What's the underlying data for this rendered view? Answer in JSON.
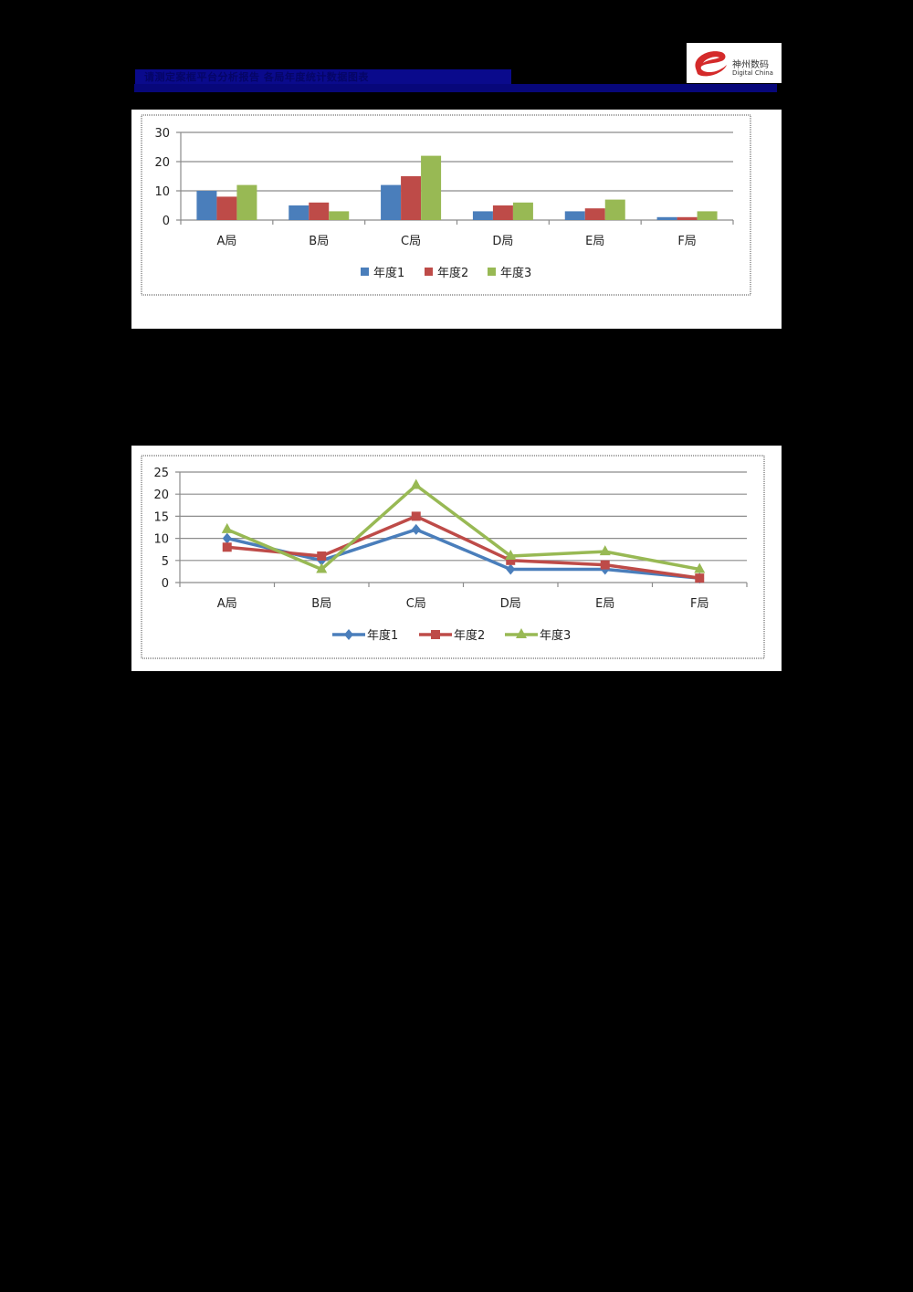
{
  "header": {
    "title": "请测定案框平台分析报告 各局年度统计数据图表",
    "title_bar_color": "#0a0a8c",
    "rule_color": "#07077a"
  },
  "logo": {
    "name_cn": "神州数码",
    "name_en": "Digital China",
    "icon": "digital-china-swirl-logo-icon"
  },
  "colors": {
    "series1": "#4a7ebb",
    "series2": "#be4b48",
    "series3": "#98b954",
    "gridline": "#8c8c8c",
    "panel_border": "#a6a6a6"
  },
  "chart_data": [
    {
      "type": "bar",
      "title": "",
      "xlabel": "",
      "ylabel": "",
      "categories": [
        "A局",
        "B局",
        "C局",
        "D局",
        "E局",
        "F局"
      ],
      "series": [
        {
          "name": "年度1",
          "values": [
            10,
            5,
            12,
            3,
            3,
            1
          ]
        },
        {
          "name": "年度2",
          "values": [
            8,
            6,
            15,
            5,
            4,
            1
          ]
        },
        {
          "name": "年度3",
          "values": [
            12,
            3,
            22,
            6,
            7,
            3
          ]
        }
      ],
      "ylim": [
        0,
        30
      ],
      "yticks": [
        "0",
        "10",
        "20",
        "30"
      ],
      "grid": true,
      "legend_position": "bottom"
    },
    {
      "type": "line",
      "title": "",
      "xlabel": "",
      "ylabel": "",
      "categories": [
        "A局",
        "B局",
        "C局",
        "D局",
        "E局",
        "F局"
      ],
      "series": [
        {
          "name": "年度1",
          "marker": "diamond",
          "values": [
            10,
            5,
            12,
            3,
            3,
            1
          ]
        },
        {
          "name": "年度2",
          "marker": "square",
          "values": [
            8,
            6,
            15,
            5,
            4,
            1
          ]
        },
        {
          "name": "年度3",
          "marker": "triangle",
          "values": [
            12,
            3,
            22,
            6,
            7,
            3
          ]
        }
      ],
      "ylim": [
        0,
        25
      ],
      "yticks": [
        "0",
        "5",
        "10",
        "15",
        "20",
        "25"
      ],
      "grid": true,
      "legend_position": "bottom"
    }
  ]
}
